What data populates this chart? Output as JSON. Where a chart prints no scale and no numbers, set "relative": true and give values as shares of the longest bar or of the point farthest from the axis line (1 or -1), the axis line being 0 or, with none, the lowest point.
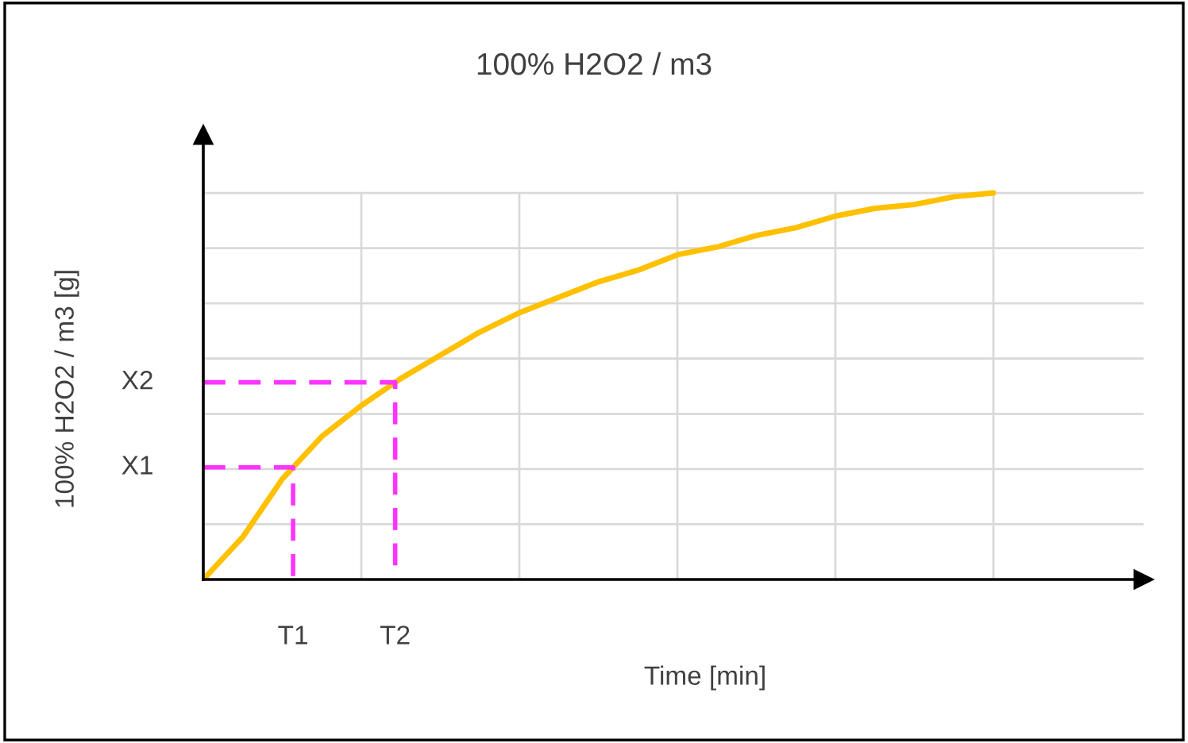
{
  "chart_data": {
    "type": "line",
    "title": "100% H2O2 / m3",
    "xlabel": "Time [min]",
    "ylabel": "100% H2O2 / m3 [g]",
    "relative": true,
    "categories": [
      null,
      null,
      null,
      null,
      null,
      null,
      null,
      null,
      null,
      null,
      null,
      null,
      null,
      null,
      null,
      null,
      null,
      null,
      null,
      null,
      null
    ],
    "series": [
      {
        "color": "#ffc000",
        "values": [
          0,
          0.11,
          0.26,
          0.37,
          0.45,
          0.52,
          0.58,
          0.64,
          0.69,
          0.73,
          0.77,
          0.8,
          0.84,
          0.86,
          0.89,
          0.91,
          0.94,
          0.96,
          0.97,
          0.99,
          1.0
        ]
      }
    ],
    "grid": true,
    "marker": "none",
    "line_style": "solid",
    "ref_lines": [
      {
        "axis": "y",
        "value": 0.29,
        "label": "X1",
        "color": "#ff33ff",
        "line_style": "dashed"
      },
      {
        "axis": "y",
        "value": 0.51,
        "label": "X2",
        "color": "#ff33ff",
        "line_style": "dashed"
      }
    ],
    "annotations": [
      "T1",
      "T2"
    ]
  }
}
